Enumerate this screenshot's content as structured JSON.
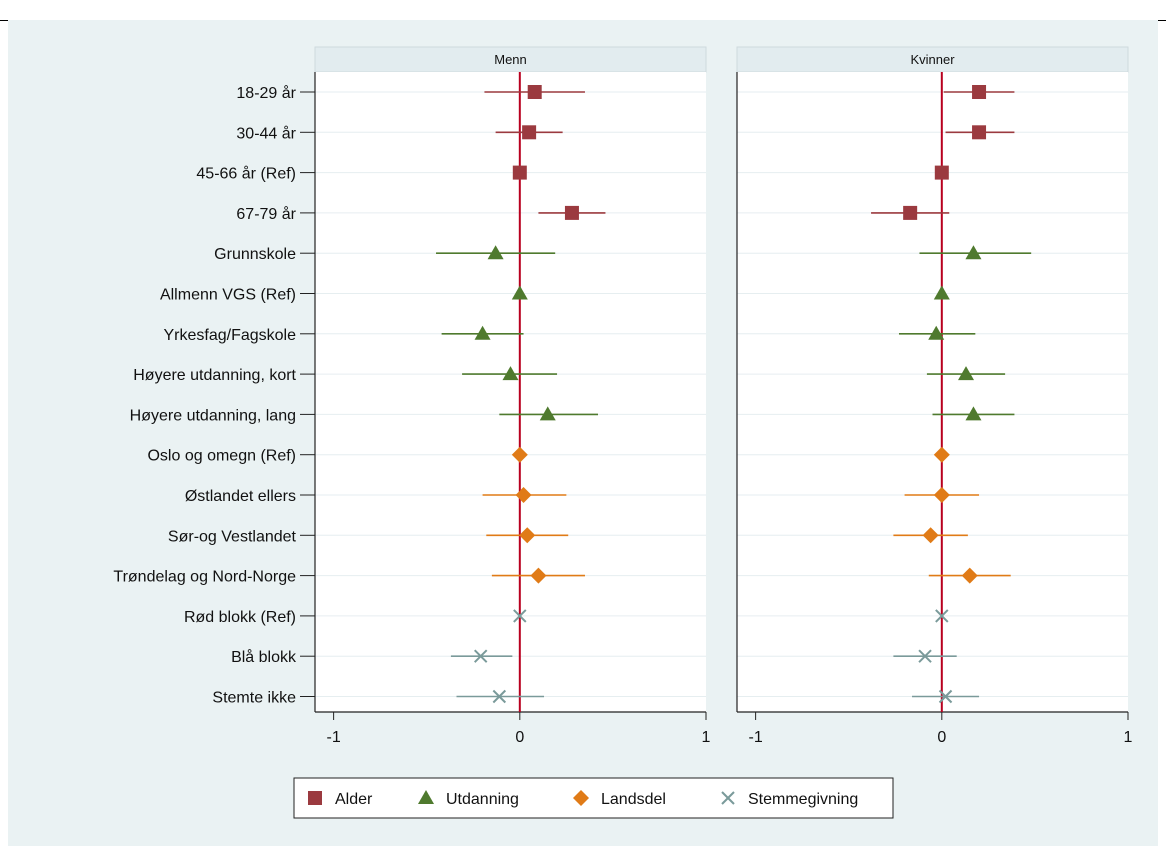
{
  "chart_data": {
    "type": "scatter",
    "subtype": "coefficient-plot",
    "panels": [
      {
        "title": "Menn",
        "xticks": [
          -1,
          0,
          1
        ],
        "xlim": [
          -1.1,
          1.0
        ],
        "series": [
          {
            "name": "Alder",
            "color": "#9b3a3f",
            "marker": "square",
            "points": [
              {
                "label": "18-29 år",
                "est": 0.08,
                "lo": -0.19,
                "hi": 0.35
              },
              {
                "label": "30-44 år",
                "est": 0.05,
                "lo": -0.13,
                "hi": 0.23
              },
              {
                "label": "45-66 år (Ref)",
                "est": 0.0,
                "lo": 0.0,
                "hi": 0.0
              },
              {
                "label": "67-79 år",
                "est": 0.28,
                "lo": 0.1,
                "hi": 0.46
              }
            ]
          },
          {
            "name": "Utdanning",
            "color": "#4f7a2e",
            "marker": "triangle",
            "points": [
              {
                "label": "Grunnskole",
                "est": -0.13,
                "lo": -0.45,
                "hi": 0.19
              },
              {
                "label": "Allmenn VGS (Ref)",
                "est": 0.0,
                "lo": 0.0,
                "hi": 0.0
              },
              {
                "label": "Yrkesfag/Fagskole",
                "est": -0.2,
                "lo": -0.42,
                "hi": 0.02
              },
              {
                "label": "Høyere utdanning, kort",
                "est": -0.05,
                "lo": -0.31,
                "hi": 0.2
              },
              {
                "label": "Høyere utdanning, lang",
                "est": 0.15,
                "lo": -0.11,
                "hi": 0.42
              }
            ]
          },
          {
            "name": "Landsdel",
            "color": "#e07b17",
            "marker": "diamond",
            "points": [
              {
                "label": "Oslo og omegn (Ref)",
                "est": 0.0,
                "lo": 0.0,
                "hi": 0.0
              },
              {
                "label": "Østlandet ellers",
                "est": 0.02,
                "lo": -0.2,
                "hi": 0.25
              },
              {
                "label": "Sør-og Vestlandet",
                "est": 0.04,
                "lo": -0.18,
                "hi": 0.26
              },
              {
                "label": "Trøndelag og Nord-Norge",
                "est": 0.1,
                "lo": -0.15,
                "hi": 0.35
              }
            ]
          },
          {
            "name": "Stemmegivning",
            "color": "#7a9a9a",
            "marker": "x",
            "points": [
              {
                "label": "Rød blokk (Ref)",
                "est": 0.0,
                "lo": 0.0,
                "hi": 0.0
              },
              {
                "label": "Blå blokk",
                "est": -0.21,
                "lo": -0.37,
                "hi": -0.04
              },
              {
                "label": "Stemte ikke",
                "est": -0.11,
                "lo": -0.34,
                "hi": 0.13
              }
            ]
          }
        ]
      },
      {
        "title": "Kvinner",
        "xticks": [
          -1,
          0,
          1
        ],
        "xlim": [
          -1.1,
          1.0
        ],
        "series": [
          {
            "name": "Alder",
            "color": "#9b3a3f",
            "marker": "square",
            "points": [
              {
                "label": "18-29 år",
                "est": 0.2,
                "lo": 0.01,
                "hi": 0.39
              },
              {
                "label": "30-44 år",
                "est": 0.2,
                "lo": 0.02,
                "hi": 0.39
              },
              {
                "label": "45-66 år (Ref)",
                "est": 0.0,
                "lo": 0.0,
                "hi": 0.0
              },
              {
                "label": "67-79 år",
                "est": -0.17,
                "lo": -0.38,
                "hi": 0.04
              }
            ]
          },
          {
            "name": "Utdanning",
            "color": "#4f7a2e",
            "marker": "triangle",
            "points": [
              {
                "label": "Grunnskole",
                "est": 0.17,
                "lo": -0.12,
                "hi": 0.48
              },
              {
                "label": "Allmenn VGS (Ref)",
                "est": 0.0,
                "lo": 0.0,
                "hi": 0.0
              },
              {
                "label": "Yrkesfag/Fagskole",
                "est": -0.03,
                "lo": -0.23,
                "hi": 0.18
              },
              {
                "label": "Høyere utdanning, kort",
                "est": 0.13,
                "lo": -0.08,
                "hi": 0.34
              },
              {
                "label": "Høyere utdanning, lang",
                "est": 0.17,
                "lo": -0.05,
                "hi": 0.39
              }
            ]
          },
          {
            "name": "Landsdel",
            "color": "#e07b17",
            "marker": "diamond",
            "points": [
              {
                "label": "Oslo og omegn (Ref)",
                "est": 0.0,
                "lo": 0.0,
                "hi": 0.0
              },
              {
                "label": "Østlandet ellers",
                "est": 0.0,
                "lo": -0.2,
                "hi": 0.2
              },
              {
                "label": "Sør-og Vestlandet",
                "est": -0.06,
                "lo": -0.26,
                "hi": 0.14
              },
              {
                "label": "Trøndelag og Nord-Norge",
                "est": 0.15,
                "lo": -0.07,
                "hi": 0.37
              }
            ]
          },
          {
            "name": "Stemmegivning",
            "color": "#7a9a9a",
            "marker": "x",
            "points": [
              {
                "label": "Rød blokk (Ref)",
                "est": 0.0,
                "lo": 0.0,
                "hi": 0.0
              },
              {
                "label": "Blå blokk",
                "est": -0.09,
                "lo": -0.26,
                "hi": 0.08
              },
              {
                "label": "Stemte ikke",
                "est": 0.02,
                "lo": -0.16,
                "hi": 0.2
              }
            ]
          }
        ]
      }
    ],
    "categories": [
      "18-29 år",
      "30-44 år",
      "45-66 år (Ref)",
      "67-79 år",
      "Grunnskole",
      "Allmenn VGS (Ref)",
      "Yrkesfag/Fagskole",
      "Høyere utdanning, kort",
      "Høyere utdanning, lang",
      "Oslo og omegn (Ref)",
      "Østlandet ellers",
      "Sør-og Vestlandet",
      "Trøndelag og Nord-Norge",
      "Rød blokk (Ref)",
      "Blå blokk",
      "Stemte ikke"
    ],
    "legend": {
      "placement": "bottom",
      "entries": [
        {
          "name": "Alder",
          "marker": "square",
          "color": "#9b3a3f"
        },
        {
          "name": "Utdanning",
          "marker": "triangle",
          "color": "#4f7a2e"
        },
        {
          "name": "Landsdel",
          "marker": "diamond",
          "color": "#e07b17"
        },
        {
          "name": "Stemmegivning",
          "marker": "x",
          "color": "#7a9a9a"
        }
      ]
    },
    "reference_line": {
      "x": 0,
      "color": "#b8001f"
    },
    "grid": true,
    "colors": {
      "background": "#eaf2f3",
      "plot_bg": "#ffffff",
      "header_bg": "#e2ecef",
      "gridline": "#e6eef0"
    }
  }
}
